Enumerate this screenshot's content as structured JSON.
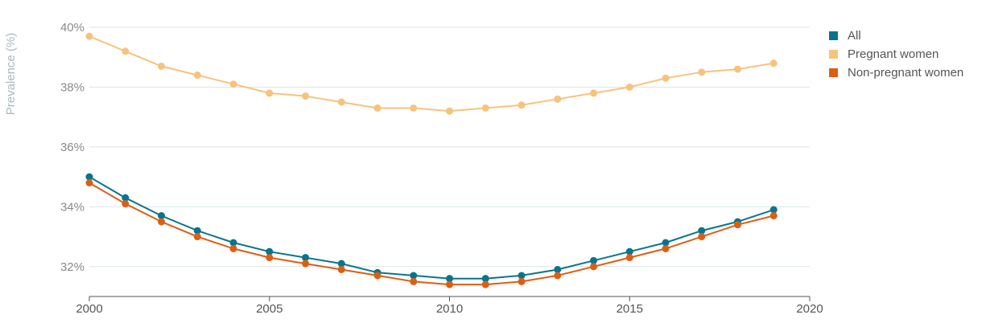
{
  "chart_data": {
    "type": "line",
    "ylabel": "Prevalence (%)",
    "xlabel": "",
    "x_ticks": [
      "2000",
      "2005",
      "2010",
      "2015",
      "2020"
    ],
    "y_ticks": [
      "32%",
      "34%",
      "36%",
      "38%",
      "40%"
    ],
    "xlim": [
      2000,
      2020
    ],
    "ylim": [
      31,
      40
    ],
    "grid": "horizontal",
    "legend_position": "right",
    "x": [
      2000,
      2001,
      2002,
      2003,
      2004,
      2005,
      2006,
      2007,
      2008,
      2009,
      2010,
      2011,
      2012,
      2013,
      2014,
      2015,
      2016,
      2017,
      2018,
      2019
    ],
    "series": [
      {
        "name": "All",
        "color": "#08758d",
        "values": [
          35.0,
          34.3,
          33.7,
          33.2,
          32.8,
          32.5,
          32.3,
          32.1,
          31.8,
          31.7,
          31.6,
          31.6,
          31.7,
          31.9,
          32.2,
          32.5,
          32.8,
          33.2,
          33.5,
          33.9
        ]
      },
      {
        "name": "Pregnant women",
        "color": "#f6c37c",
        "values": [
          39.7,
          39.2,
          38.7,
          38.4,
          38.1,
          37.8,
          37.7,
          37.5,
          37.3,
          37.3,
          37.2,
          37.3,
          37.4,
          37.6,
          37.8,
          38.0,
          38.3,
          38.5,
          38.6,
          38.8
        ]
      },
      {
        "name": "Non-pregnant women",
        "color": "#dd5e13",
        "values": [
          34.8,
          34.1,
          33.5,
          33.0,
          32.6,
          32.3,
          32.1,
          31.9,
          31.7,
          31.5,
          31.4,
          31.4,
          31.5,
          31.7,
          32.0,
          32.3,
          32.6,
          33.0,
          33.4,
          33.7
        ]
      }
    ]
  }
}
